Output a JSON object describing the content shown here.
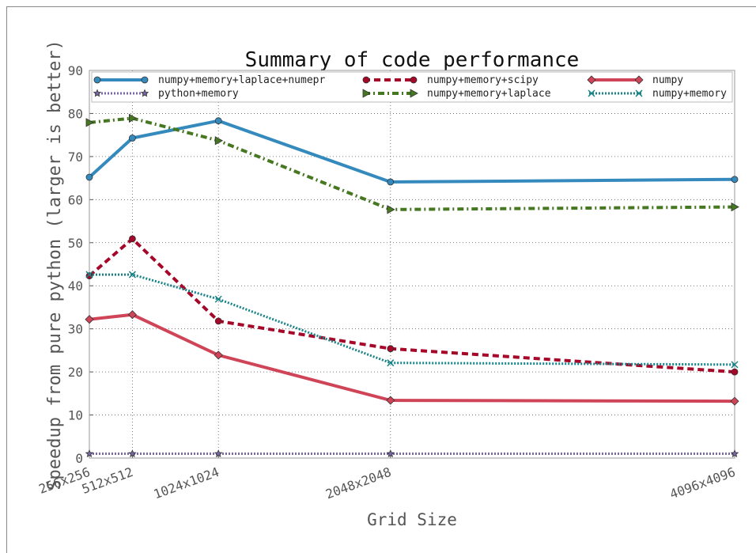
{
  "chart_data": {
    "type": "line",
    "title": "Summary of code performance",
    "xlabel": "Grid Size",
    "ylabel": "Speedup from pure python (larger is better)",
    "x": [
      256,
      512,
      1024,
      2048,
      4096
    ],
    "xlim": [
      256,
      4096
    ],
    "xticks": [
      {
        "value": 256,
        "label": "256x256"
      },
      {
        "value": 512,
        "label": "512x512"
      },
      {
        "value": 1024,
        "label": "1024x1024"
      },
      {
        "value": 2048,
        "label": "2048x2048"
      },
      {
        "value": 4096,
        "label": "4096x4096"
      }
    ],
    "ylim": [
      0,
      90
    ],
    "yticks": [
      0,
      10,
      20,
      30,
      40,
      50,
      60,
      70,
      80,
      90
    ],
    "grid": true,
    "legend": "top",
    "legend_columns": 3,
    "series": [
      {
        "name": "numpy+memory+laplace+numepr",
        "color": "#348abd",
        "linestyle": "solid",
        "marker": "circle",
        "values": [
          65.2,
          74.3,
          78.3,
          64.1,
          64.7
        ]
      },
      {
        "name": "python+memory",
        "color": "#7a68a6",
        "linestyle": "dotted",
        "marker": "star",
        "values": [
          1,
          1,
          1,
          1,
          1
        ]
      },
      {
        "name": "numpy+memory+scipy",
        "color": "#a60628",
        "linestyle": "dashed",
        "marker": "circle",
        "values": [
          42.3,
          50.9,
          31.8,
          25.4,
          20.0
        ]
      },
      {
        "name": "numpy+memory+laplace",
        "color": "#467821",
        "linestyle": "dashdot",
        "marker": "triangle",
        "values": [
          77.9,
          78.9,
          73.7,
          57.7,
          58.3
        ]
      },
      {
        "name": "numpy",
        "color": "#cf4457",
        "linestyle": "solid",
        "marker": "diamond",
        "values": [
          32.2,
          33.3,
          23.9,
          13.4,
          13.2
        ]
      },
      {
        "name": "numpy+memory",
        "color": "#188487",
        "linestyle": "dotted",
        "marker": "x",
        "values": [
          42.6,
          42.6,
          36.9,
          22.1,
          21.7
        ]
      }
    ]
  }
}
